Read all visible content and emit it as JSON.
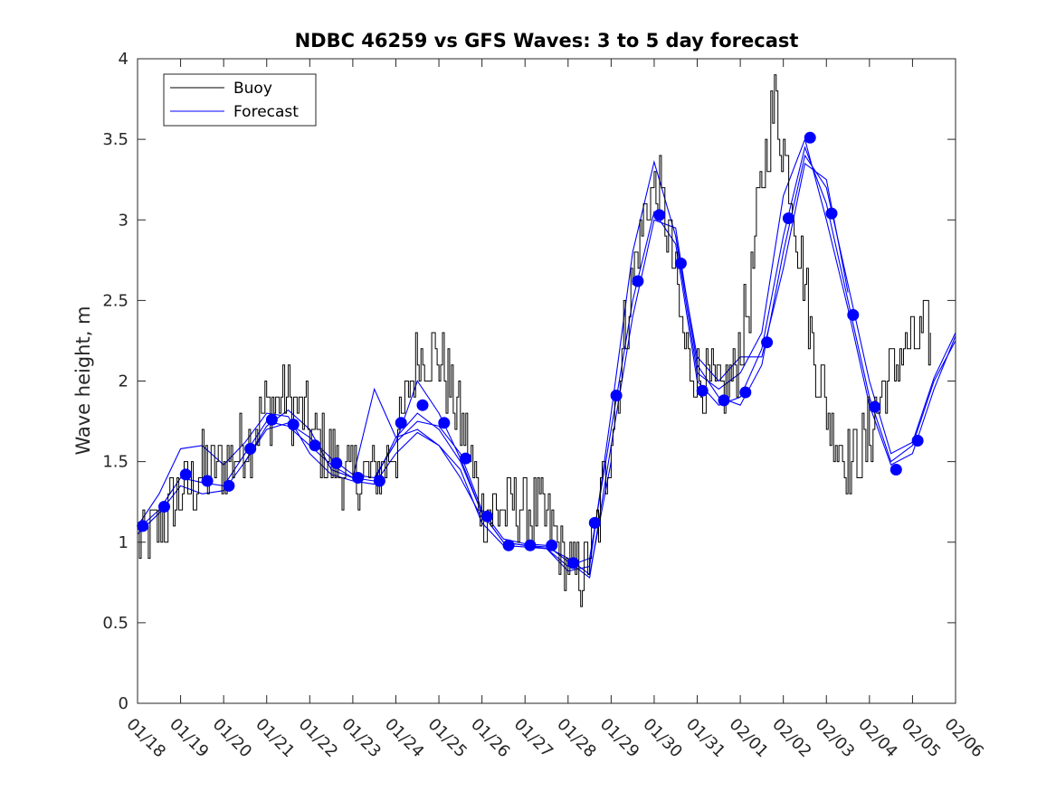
{
  "chart_data": {
    "type": "line",
    "title": "NDBC 46259 vs GFS Waves: 3 to 5 day forecast",
    "xlabel": "",
    "ylabel": "Wave height, m",
    "xlim": [
      0,
      19
    ],
    "ylim": [
      0,
      4
    ],
    "x_tick_labels": [
      "01/18",
      "01/19",
      "01/20",
      "01/21",
      "01/22",
      "01/23",
      "01/24",
      "01/25",
      "01/26",
      "01/27",
      "01/28",
      "01/29",
      "01/30",
      "01/31",
      "02/01",
      "02/02",
      "02/03",
      "02/04",
      "02/05",
      "02/06"
    ],
    "y_ticks": [
      0,
      0.5,
      1,
      1.5,
      2,
      2.5,
      3,
      3.5,
      4
    ],
    "y_tick_labels": [
      "0",
      "0.5",
      "1",
      "1.5",
      "2",
      "2.5",
      "3",
      "3.5",
      "4"
    ],
    "legend": {
      "position": "top-left",
      "entries": [
        "Buoy",
        "Forecast"
      ]
    },
    "colors": {
      "buoy": "#000000",
      "forecast": "#0000ff",
      "axes": "#262626"
    },
    "buoy": {
      "name": "Buoy",
      "x": [
        0,
        0.5,
        1,
        1.5,
        2,
        2.5,
        3,
        3.5,
        4,
        4.5,
        5,
        5.5,
        6,
        6.5,
        7,
        7.5,
        8,
        8.5,
        9,
        9.5,
        10,
        10.3,
        10.6,
        10.9,
        11.2,
        11.5,
        11.8,
        12.1,
        12.4,
        12.7,
        13,
        13.3,
        13.6,
        13.9,
        14.2,
        14.5,
        14.8,
        15.1,
        15.4,
        15.7,
        16,
        16.3,
        16.6,
        16.9,
        17.2,
        17.5,
        17.8,
        18.1,
        18.4,
        18.7,
        19
      ],
      "y": [
        1.0,
        1.1,
        1.3,
        1.45,
        1.5,
        1.6,
        1.85,
        1.9,
        1.7,
        1.5,
        1.4,
        1.4,
        1.6,
        2.2,
        2.15,
        1.75,
        1.2,
        1.2,
        1.2,
        1.15,
        0.85,
        0.8,
        1.0,
        1.5,
        2.1,
        2.65,
        3.1,
        3.2,
        2.8,
        2.2,
        2.0,
        1.95,
        1.9,
        2.1,
        2.5,
        3.3,
        3.75,
        3.3,
        2.8,
        2.2,
        1.8,
        1.6,
        1.5,
        1.6,
        1.85,
        2.05,
        2.2,
        2.25,
        2.3,
        2.33,
        2.35
      ]
    },
    "forecast_markers": {
      "name": "Forecast",
      "x": [
        0.12,
        0.62,
        1.12,
        1.62,
        2.12,
        2.62,
        3.12,
        3.62,
        4.12,
        4.62,
        5.12,
        5.62,
        6.12,
        6.62,
        7.12,
        7.62,
        8.12,
        8.62,
        9.12,
        9.62,
        10.12,
        10.62,
        11.12,
        11.62,
        12.12,
        12.62,
        13.12,
        13.62,
        14.12,
        14.62,
        15.12,
        15.62,
        16.12,
        16.62,
        17.12,
        17.62,
        18.12
      ],
      "y": [
        1.1,
        1.22,
        1.42,
        1.38,
        1.35,
        1.58,
        1.76,
        1.73,
        1.6,
        1.49,
        1.4,
        1.38,
        1.74,
        1.85,
        1.74,
        1.52,
        1.16,
        0.98,
        0.98,
        0.98,
        0.87,
        1.12,
        1.91,
        2.62,
        3.03,
        2.73,
        1.94,
        1.88,
        1.93,
        2.24,
        3.01,
        3.51,
        3.04,
        2.41,
        1.84,
        1.45,
        1.63
      ]
    },
    "forecast_runs": [
      {
        "name": "Forecast",
        "x": [
          0,
          0.5,
          1,
          1.5,
          2,
          2.5,
          3,
          3.5,
          4,
          4.5,
          5,
          5.5,
          6,
          6.5,
          7,
          7.5,
          8,
          8.5,
          9,
          9.5,
          10,
          10.5,
          11,
          11.5,
          12,
          12.5,
          13,
          13.5,
          14,
          14.5,
          15,
          15.5,
          16,
          16.5,
          17,
          17.5,
          18,
          18.5,
          19
        ],
        "y": [
          1.08,
          1.2,
          1.4,
          1.37,
          1.35,
          1.55,
          1.75,
          1.72,
          1.6,
          1.48,
          1.4,
          1.38,
          1.65,
          1.8,
          1.7,
          1.5,
          1.18,
          1.0,
          0.98,
          0.96,
          0.85,
          0.9,
          1.7,
          2.5,
          3.05,
          2.85,
          2.0,
          1.85,
          1.9,
          2.2,
          2.9,
          3.45,
          3.1,
          2.5,
          1.9,
          1.5,
          1.6,
          2.0,
          2.25
        ]
      },
      {
        "name": "Forecast",
        "x": [
          0,
          0.5,
          1,
          1.5,
          2,
          2.5,
          3,
          3.5,
          4,
          4.5,
          5,
          5.5,
          6,
          6.5,
          7,
          7.5,
          8,
          8.5,
          9,
          9.5,
          10,
          10.5,
          11,
          11.5,
          12,
          12.5,
          13,
          13.5,
          14,
          14.5,
          15,
          15.5,
          16,
          16.5,
          17,
          17.5,
          18,
          18.5,
          19
        ],
        "y": [
          1.1,
          1.3,
          1.58,
          1.6,
          1.48,
          1.62,
          1.8,
          1.78,
          1.55,
          1.42,
          1.38,
          1.36,
          1.55,
          1.68,
          1.6,
          1.45,
          1.12,
          0.98,
          0.97,
          0.96,
          0.82,
          0.85,
          1.8,
          2.8,
          3.36,
          2.9,
          2.05,
          1.95,
          2.05,
          2.3,
          3.15,
          3.5,
          3.0,
          2.45,
          1.85,
          1.48,
          1.55,
          1.95,
          2.28
        ]
      },
      {
        "name": "Forecast",
        "x": [
          0,
          0.5,
          1,
          1.5,
          2,
          2.5,
          3,
          3.5,
          4,
          4.5,
          5,
          5.5,
          6,
          6.5,
          7,
          7.5,
          8,
          8.5,
          9,
          9.5,
          10,
          10.5,
          11,
          11.5,
          12,
          12.5,
          13,
          13.5,
          14,
          14.5,
          15,
          15.5,
          16,
          16.5,
          17,
          17.5,
          18,
          18.5,
          19
        ],
        "y": [
          1.05,
          1.18,
          1.35,
          1.3,
          1.32,
          1.5,
          1.7,
          1.74,
          1.65,
          1.52,
          1.42,
          1.4,
          1.62,
          1.75,
          1.72,
          1.55,
          1.2,
          1.02,
          0.99,
          0.98,
          0.88,
          0.78,
          1.6,
          2.4,
          3.0,
          2.95,
          2.1,
          1.9,
          1.85,
          2.1,
          2.8,
          3.4,
          3.2,
          2.6,
          2.0,
          1.55,
          1.62,
          2.02,
          2.3
        ]
      },
      {
        "name": "Forecast",
        "x": [
          2.5,
          3,
          3.5,
          4,
          4.5,
          5,
          5.5,
          6,
          6.5,
          7,
          7.5,
          8
        ],
        "y": [
          1.5,
          1.72,
          1.82,
          1.7,
          1.45,
          1.4,
          1.95,
          1.65,
          1.7,
          1.6,
          1.4,
          1.15
        ]
      },
      {
        "name": "Forecast",
        "x": [
          5.5,
          6,
          6.5,
          7,
          7.5,
          8,
          8.5,
          9,
          9.5,
          10,
          10.5,
          11
        ],
        "y": [
          1.4,
          1.62,
          2.0,
          1.8,
          1.52,
          1.18,
          1.0,
          0.98,
          0.97,
          0.9,
          0.8,
          1.5
        ]
      },
      {
        "name": "Forecast",
        "x": [
          12.5,
          13,
          13.5,
          14,
          14.5,
          15,
          15.5,
          16,
          16.5
        ],
        "y": [
          2.9,
          2.15,
          2.0,
          2.15,
          2.15,
          2.7,
          3.35,
          3.25,
          2.55
        ]
      }
    ]
  }
}
